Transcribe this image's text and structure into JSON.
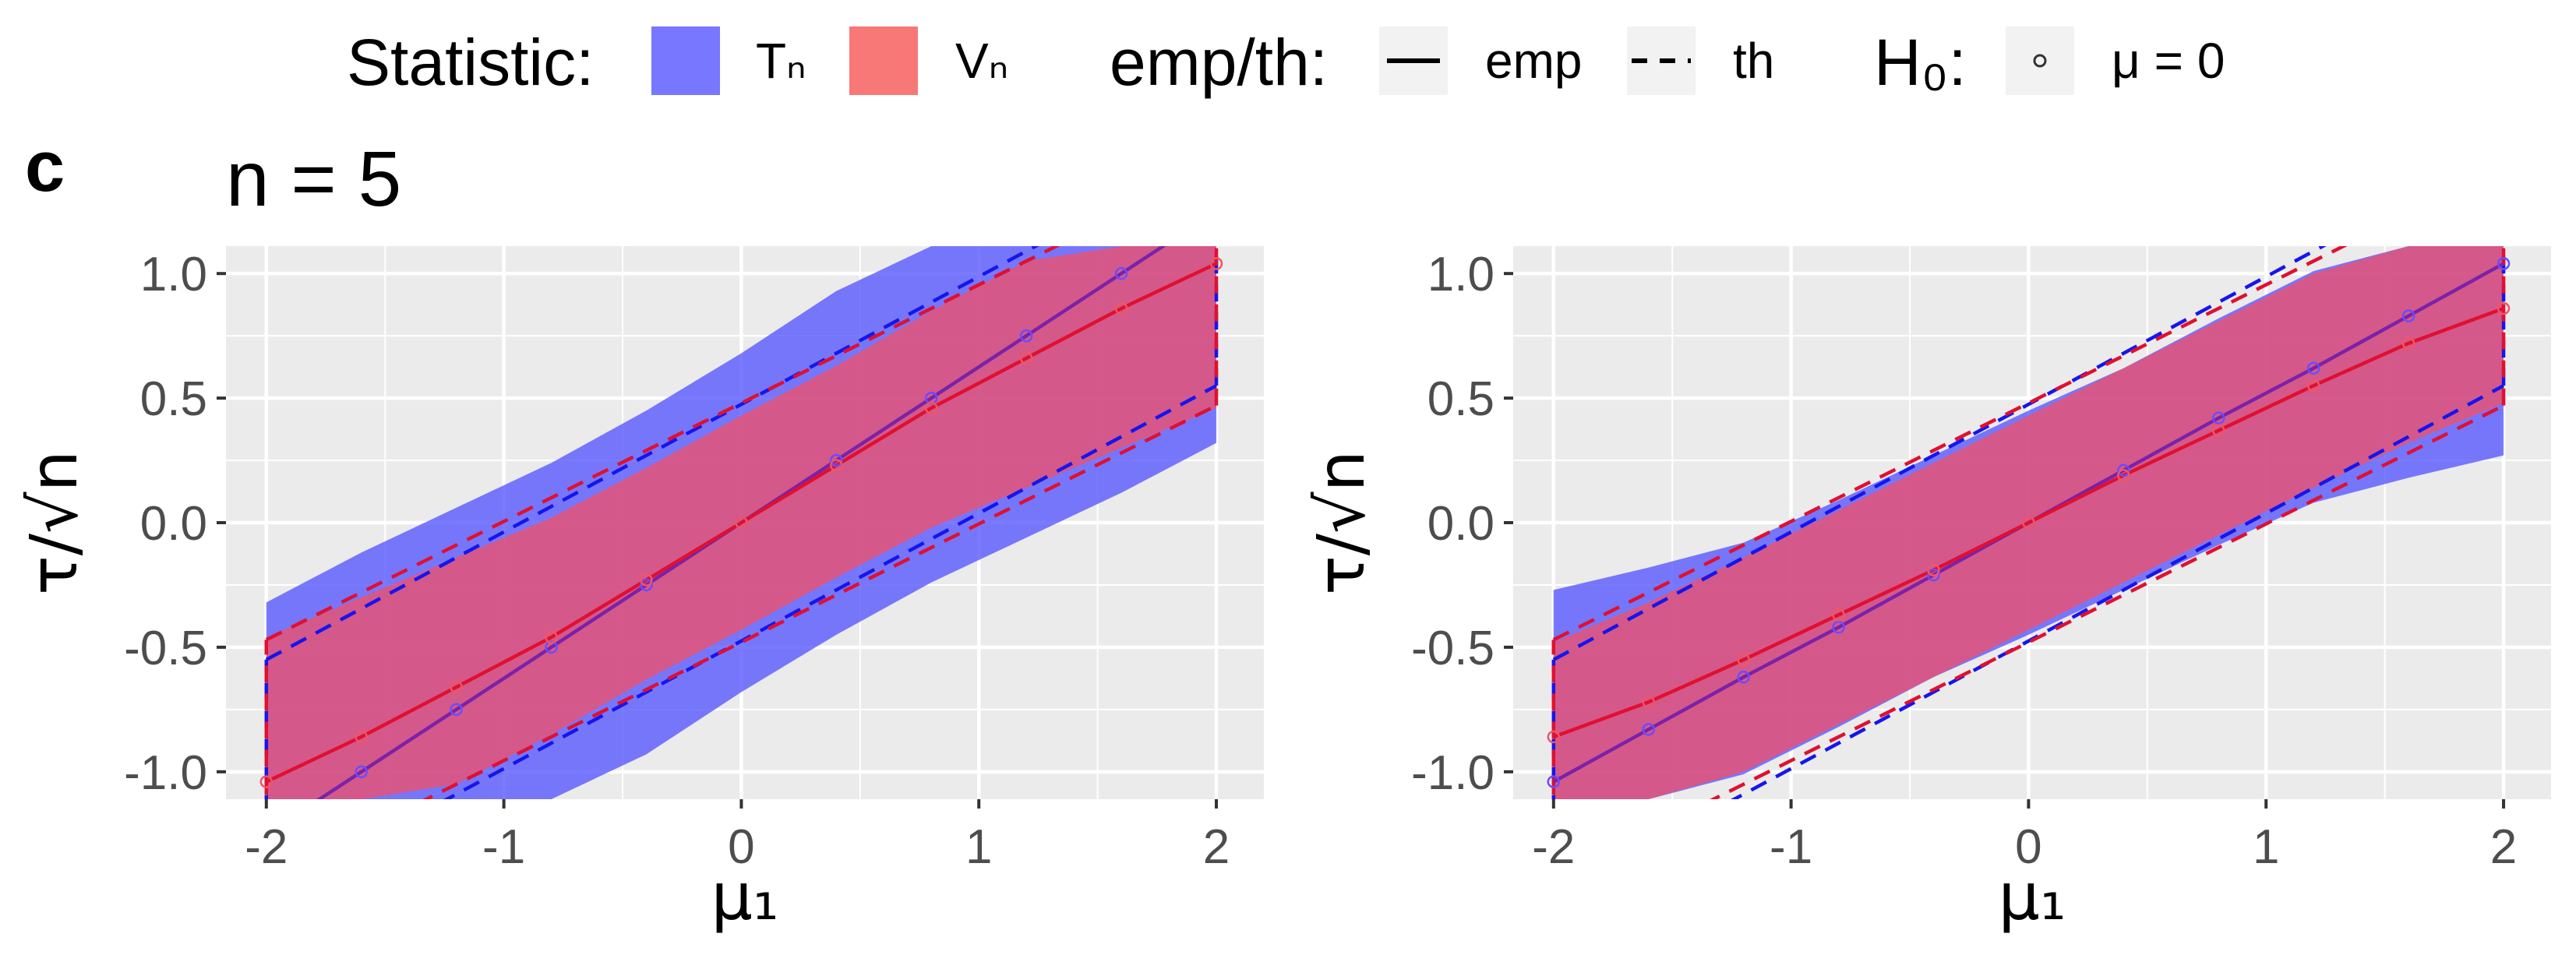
{
  "legend": {
    "statistic_title": "Statistic:",
    "statistic_items": [
      {
        "label": "Tₙ",
        "color": "#7777ff"
      },
      {
        "label": "Vₙ",
        "color": "#f87878"
      }
    ],
    "emp_th_title": "emp/th:",
    "emp_th_items": [
      {
        "label": "emp",
        "linetype": "solid"
      },
      {
        "label": "th",
        "linetype": "dashed"
      }
    ],
    "h0_title": "H₀:",
    "h0_items": [
      {
        "label": "μ = 0",
        "shape": "open-circle"
      }
    ]
  },
  "panel": {
    "tag": "c",
    "title": "n = 5"
  },
  "colors": {
    "T_fill": "#5555ff",
    "V_fill": "#f0506a",
    "T_line": "#1515ee",
    "V_line": "#e01030",
    "T_point": "#6a4cff",
    "V_point": "#ee5566",
    "panel_bg": "#ebebeb",
    "grid": "#ffffff"
  },
  "chart_data": [
    {
      "type": "area",
      "xlabel": "μ₁",
      "ylabel": "τ/√n",
      "xlim": [
        -2.17,
        2.2
      ],
      "ylim": [
        -1.11,
        1.11
      ],
      "x_ticks": [
        -2,
        -1,
        0,
        1,
        2
      ],
      "x_tick_labels": [
        "-2",
        "-1",
        "0",
        "1",
        "2"
      ],
      "y_ticks": [
        -1.0,
        -0.5,
        0.0,
        0.5,
        1.0
      ],
      "y_tick_labels": [
        "-1.0",
        "-0.5",
        "0.0",
        "0.5",
        "1.0"
      ],
      "grid": true,
      "series": [
        {
          "name": "Tₙ",
          "role": "emp-band",
          "x": [
            -2,
            -1.6,
            -1.2,
            -0.8,
            -0.4,
            0,
            0.4,
            0.8,
            1.2,
            1.6,
            2
          ],
          "lower": [
            -1.11,
            -1.11,
            -1.11,
            -1.11,
            -0.93,
            -0.68,
            -0.45,
            -0.24,
            -0.06,
            0.12,
            0.32
          ],
          "upper": [
            -0.32,
            -0.12,
            0.06,
            0.24,
            0.45,
            0.68,
            0.93,
            1.11,
            1.11,
            1.11,
            1.11
          ]
        },
        {
          "name": "Vₙ",
          "role": "emp-band",
          "x": [
            -2,
            -1.6,
            -1.2,
            -0.8,
            -0.4,
            0,
            0.4,
            0.8,
            1.2,
            1.6,
            2
          ],
          "lower": [
            -1.11,
            -1.11,
            -1.05,
            -0.85,
            -0.63,
            -0.43,
            -0.22,
            -0.02,
            0.14,
            0.3,
            0.46
          ],
          "upper": [
            -0.46,
            -0.3,
            -0.14,
            0.02,
            0.22,
            0.43,
            0.63,
            0.85,
            1.05,
            1.11,
            1.11
          ]
        },
        {
          "name": "Tₙ",
          "role": "emp-line",
          "x": [
            -2,
            -1.6,
            -1.2,
            -0.8,
            -0.4,
            0,
            0.4,
            0.8,
            1.2,
            1.6,
            2
          ],
          "y": [
            -1.25,
            -1.0,
            -0.75,
            -0.5,
            -0.25,
            0,
            0.25,
            0.5,
            0.75,
            1.0,
            1.25
          ]
        },
        {
          "name": "Vₙ",
          "role": "emp-line",
          "x": [
            -2,
            -1.6,
            -1.2,
            -0.8,
            -0.4,
            0,
            0.4,
            0.8,
            1.2,
            1.6,
            2
          ],
          "y": [
            -1.04,
            -0.86,
            -0.66,
            -0.46,
            -0.23,
            0,
            0.23,
            0.46,
            0.66,
            0.86,
            1.04
          ]
        },
        {
          "name": "Tₙ",
          "role": "th-band",
          "x": [
            -2,
            2
          ],
          "lower": [
            -1.5,
            0.55
          ],
          "upper": [
            -0.55,
            1.5
          ]
        },
        {
          "name": "Vₙ",
          "role": "th-band",
          "x": [
            -2,
            2
          ],
          "lower": [
            -1.43,
            0.47
          ],
          "upper": [
            -0.47,
            1.43
          ]
        },
        {
          "name": "Tₙ",
          "role": "h0-points",
          "x": [
            -1.6,
            -1.2,
            -0.8,
            -0.4,
            0,
            0.4,
            0.8,
            1.2,
            1.6
          ],
          "y": [
            -1.0,
            -0.75,
            -0.5,
            -0.25,
            0,
            0.25,
            0.5,
            0.75,
            1.0
          ]
        },
        {
          "name": "Vₙ",
          "role": "h0-points",
          "x": [
            -2,
            -1.6,
            -1.2,
            -0.8,
            -0.4,
            0,
            0.4,
            0.8,
            1.2,
            1.6,
            2
          ],
          "y": [
            -1.04,
            -0.86,
            -0.66,
            -0.46,
            -0.23,
            0,
            0.23,
            0.46,
            0.66,
            0.86,
            1.04
          ]
        }
      ]
    },
    {
      "type": "area",
      "xlabel": "μ₁",
      "ylabel": "τ/√n",
      "xlim": [
        -2.17,
        2.2
      ],
      "ylim": [
        -1.11,
        1.11
      ],
      "x_ticks": [
        -2,
        -1,
        0,
        1,
        2
      ],
      "x_tick_labels": [
        "-2",
        "-1",
        "0",
        "1",
        "2"
      ],
      "y_ticks": [
        -1.0,
        -0.5,
        0.0,
        0.5,
        1.0
      ],
      "y_tick_labels": [
        "-1.0",
        "-0.5",
        "0.0",
        "0.5",
        "1.0"
      ],
      "grid": true,
      "series": [
        {
          "name": "Tₙ",
          "role": "emp-band",
          "x": [
            -2,
            -1.6,
            -1.2,
            -0.8,
            -0.4,
            0,
            0.4,
            0.8,
            1.2,
            1.6,
            2
          ],
          "lower": [
            -1.11,
            -1.11,
            -1.01,
            -0.82,
            -0.62,
            -0.45,
            -0.27,
            -0.09,
            0.08,
            0.18,
            0.27
          ],
          "upper": [
            -0.27,
            -0.18,
            -0.08,
            0.09,
            0.27,
            0.45,
            0.62,
            0.82,
            1.01,
            1.11,
            1.11
          ]
        },
        {
          "name": "Vₙ",
          "role": "emp-band",
          "x": [
            -2,
            -1.6,
            -1.2,
            -0.8,
            -0.4,
            0,
            0.4,
            0.8,
            1.2,
            1.6,
            2
          ],
          "lower": [
            -1.11,
            -1.11,
            -1.0,
            -0.81,
            -0.62,
            -0.43,
            -0.24,
            -0.05,
            0.14,
            0.32,
            0.48
          ],
          "upper": [
            -0.48,
            -0.32,
            -0.14,
            0.05,
            0.24,
            0.43,
            0.62,
            0.81,
            1.0,
            1.11,
            1.11
          ]
        },
        {
          "name": "Tₙ",
          "role": "emp-line",
          "x": [
            -2,
            -1.6,
            -1.2,
            -0.8,
            -0.4,
            0,
            0.4,
            0.8,
            1.2,
            1.6,
            2
          ],
          "y": [
            -1.04,
            -0.83,
            -0.62,
            -0.42,
            -0.21,
            0,
            0.21,
            0.42,
            0.62,
            0.83,
            1.04
          ]
        },
        {
          "name": "Vₙ",
          "role": "emp-line",
          "x": [
            -2,
            -1.6,
            -1.2,
            -0.8,
            -0.4,
            0,
            0.4,
            0.8,
            1.2,
            1.6,
            2
          ],
          "y": [
            -0.86,
            -0.72,
            -0.55,
            -0.37,
            -0.19,
            0,
            0.19,
            0.37,
            0.55,
            0.72,
            0.86
          ]
        },
        {
          "name": "Tₙ",
          "role": "th-band",
          "x": [
            -2,
            2
          ],
          "lower": [
            -1.5,
            0.55
          ],
          "upper": [
            -0.55,
            1.5
          ]
        },
        {
          "name": "Vₙ",
          "role": "th-band",
          "x": [
            -2,
            2
          ],
          "lower": [
            -1.43,
            0.47
          ],
          "upper": [
            -0.47,
            1.43
          ]
        },
        {
          "name": "Tₙ",
          "role": "h0-points",
          "x": [
            -2,
            -1.6,
            -1.2,
            -0.8,
            -0.4,
            0,
            0.4,
            0.8,
            1.2,
            1.6,
            2
          ],
          "y": [
            -1.04,
            -0.83,
            -0.62,
            -0.42,
            -0.21,
            0,
            0.21,
            0.42,
            0.62,
            0.83,
            1.04
          ]
        },
        {
          "name": "Vₙ",
          "role": "h0-points",
          "x": [
            -2,
            -1.6,
            -1.2,
            -0.8,
            -0.4,
            0,
            0.4,
            0.8,
            1.2,
            1.6,
            2
          ],
          "y": [
            -0.86,
            -0.72,
            -0.55,
            -0.37,
            -0.19,
            0,
            0.19,
            0.37,
            0.55,
            0.72,
            0.86
          ]
        }
      ]
    }
  ]
}
